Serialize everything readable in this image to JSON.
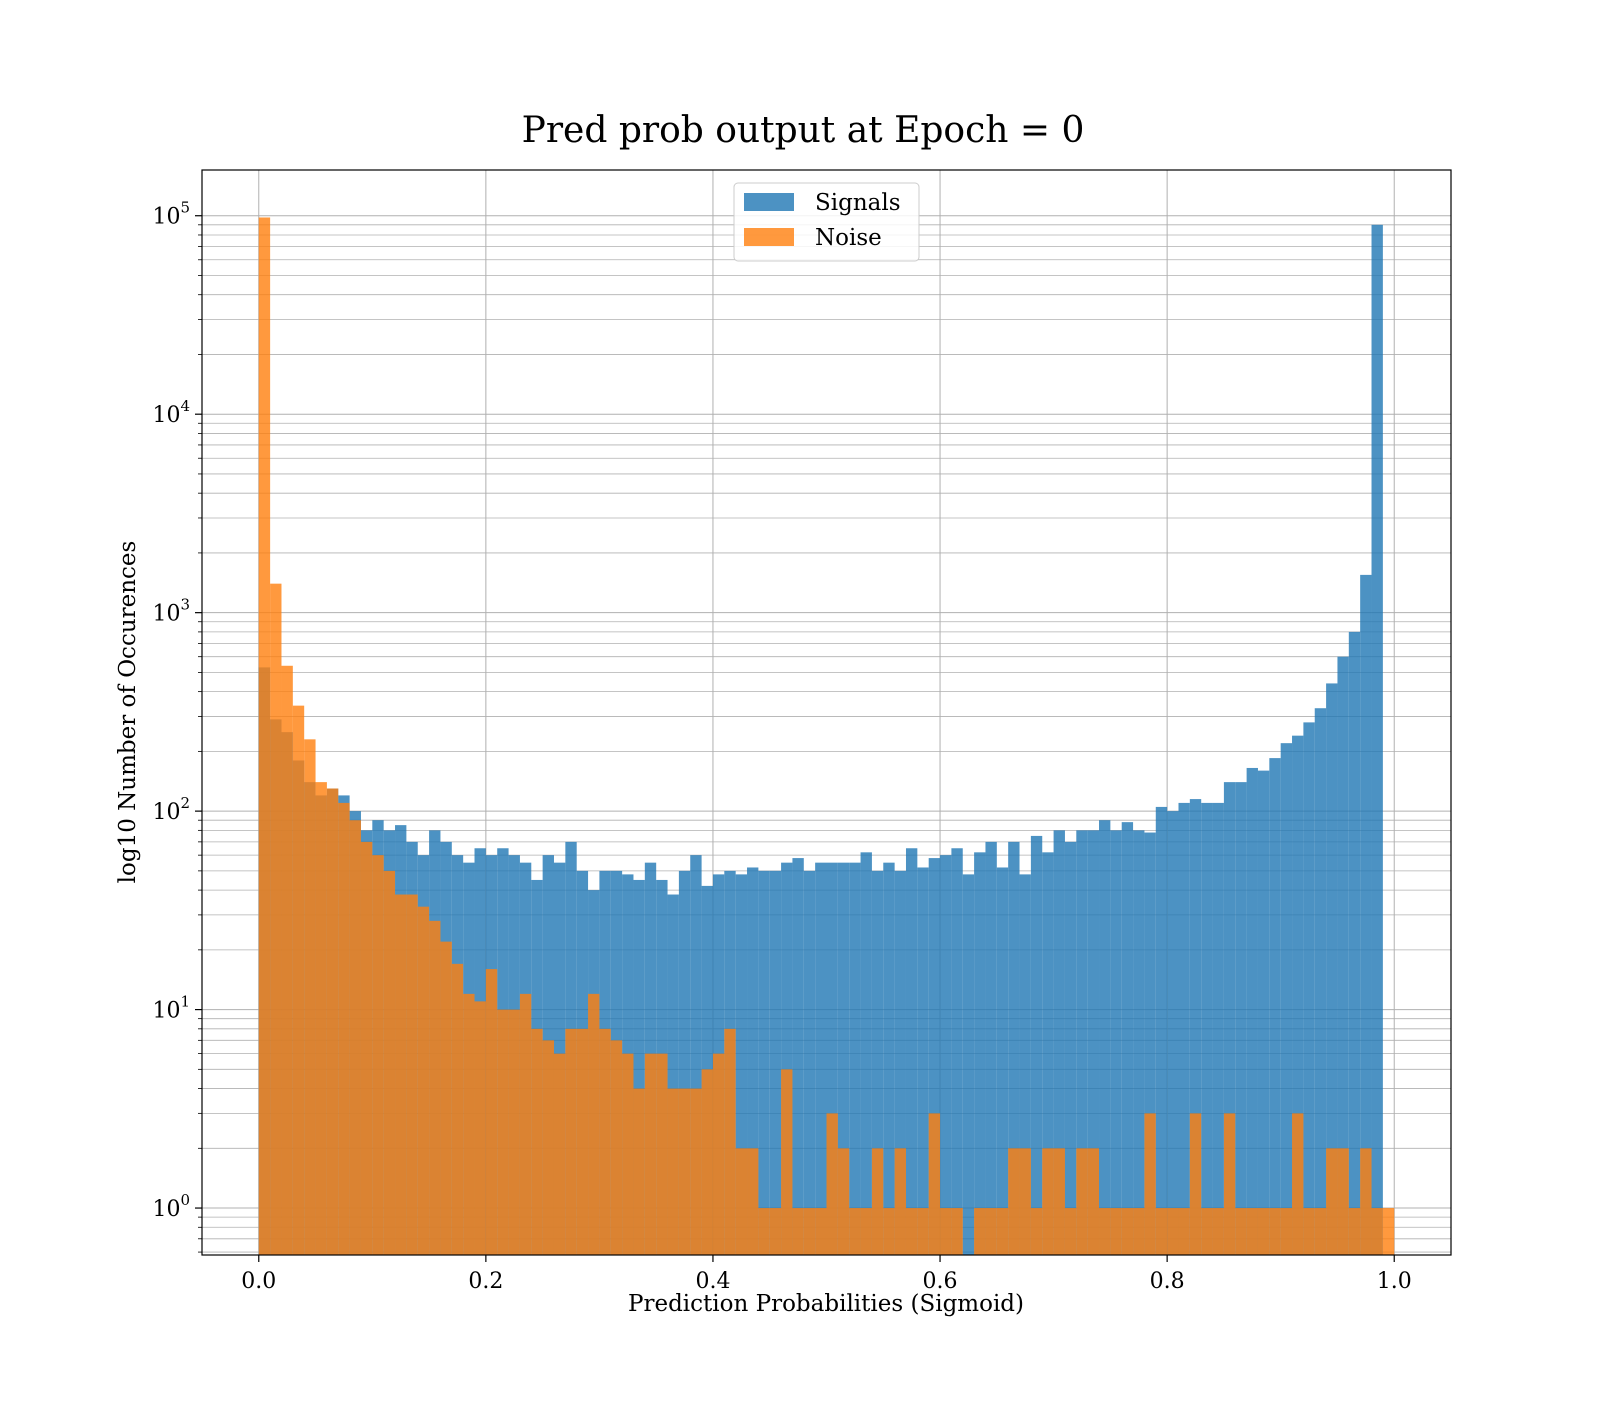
{
  "chart_data": {
    "type": "bar",
    "title": "Pred prob output at Epoch = 0",
    "xlabel": "Prediction Probabilities (Sigmoid)",
    "ylabel": "log10 Number of Occurences",
    "x_scale": "linear",
    "y_scale": "log",
    "xlim": [
      -0.05,
      1.05
    ],
    "ylim": [
      0.58,
      170000
    ],
    "bin_range": [
      0,
      1
    ],
    "bin_count": 100,
    "grid": true,
    "legend_position": "top-center",
    "x_ticks": [
      {
        "value": 0.0,
        "label": "0.0"
      },
      {
        "value": 0.2,
        "label": "0.2"
      },
      {
        "value": 0.4,
        "label": "0.4"
      },
      {
        "value": 0.6,
        "label": "0.6"
      },
      {
        "value": 0.8,
        "label": "0.8"
      },
      {
        "value": 1.0,
        "label": "1.0"
      }
    ],
    "y_ticks": [
      {
        "value": 1,
        "base": "10",
        "exp": "0"
      },
      {
        "value": 10,
        "base": "10",
        "exp": "1"
      },
      {
        "value": 100,
        "base": "10",
        "exp": "2"
      },
      {
        "value": 1000,
        "base": "10",
        "exp": "3"
      },
      {
        "value": 10000,
        "base": "10",
        "exp": "4"
      },
      {
        "value": 100000,
        "base": "10",
        "exp": "5"
      }
    ],
    "series": [
      {
        "name": "Signals",
        "color": "#1f77b4",
        "values": [
          530,
          290,
          250,
          180,
          140,
          120,
          130,
          120,
          100,
          80,
          90,
          80,
          85,
          70,
          60,
          80,
          70,
          60,
          55,
          65,
          60,
          65,
          60,
          55,
          45,
          60,
          55,
          70,
          50,
          40,
          50,
          50,
          48,
          45,
          55,
          45,
          38,
          50,
          60,
          42,
          48,
          50,
          48,
          52,
          50,
          50,
          55,
          58,
          50,
          55,
          55,
          55,
          55,
          62,
          50,
          55,
          50,
          65,
          52,
          58,
          60,
          65,
          48,
          62,
          70,
          52,
          70,
          48,
          75,
          62,
          80,
          70,
          80,
          80,
          90,
          80,
          88,
          80,
          78,
          105,
          100,
          110,
          115,
          110,
          110,
          140,
          140,
          165,
          160,
          185,
          220,
          240,
          280,
          330,
          440,
          600,
          800,
          1550,
          90000,
          0
        ]
      },
      {
        "name": "Noise",
        "color": "#ff7f0e",
        "values": [
          98000,
          1400,
          540,
          340,
          230,
          140,
          130,
          110,
          90,
          70,
          60,
          50,
          38,
          38,
          33,
          28,
          22,
          17,
          12,
          11,
          16,
          10,
          10,
          12,
          8,
          7,
          6,
          8,
          8,
          12,
          8,
          7,
          6,
          4,
          6,
          6,
          4,
          4,
          4,
          5,
          6,
          8,
          2,
          2,
          1,
          1,
          5,
          1,
          1,
          1,
          3,
          2,
          1,
          1,
          2,
          1,
          2,
          1,
          1,
          3,
          1,
          1,
          0,
          1,
          1,
          1,
          2,
          2,
          1,
          2,
          2,
          1,
          2,
          2,
          1,
          1,
          1,
          1,
          3,
          1,
          1,
          1,
          3,
          1,
          1,
          3,
          1,
          1,
          1,
          1,
          1,
          3,
          1,
          1,
          2,
          2,
          1,
          2,
          1,
          1
        ]
      }
    ]
  }
}
